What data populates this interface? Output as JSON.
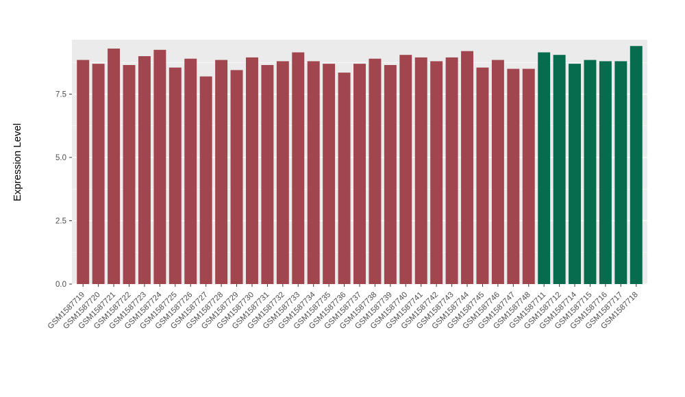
{
  "chart_data": {
    "type": "bar",
    "title": "",
    "xlabel": "",
    "ylabel": "Expression Level",
    "ylim": [
      0,
      9.65
    ],
    "yticks": [
      0,
      2.5,
      5,
      7.5
    ],
    "ytick_labels": [
      "0.0",
      "2.5",
      "5.0",
      "7.5"
    ],
    "minor_gridlines": [
      1.25,
      3.75,
      6.25,
      8.75
    ],
    "grid": true,
    "legend": "none",
    "plot_bg": "#EBEBEB",
    "grid_color": "#FFFFFF",
    "tick_color": "#333333",
    "palette": {
      "maroon": "#A1464E",
      "green": "#076C4E"
    },
    "bars": [
      {
        "label": "GSM1587719",
        "value": 8.85,
        "group": "maroon"
      },
      {
        "label": "GSM1587720",
        "value": 8.7,
        "group": "maroon"
      },
      {
        "label": "GSM1587721",
        "value": 9.3,
        "group": "maroon"
      },
      {
        "label": "GSM1587722",
        "value": 8.65,
        "group": "maroon"
      },
      {
        "label": "GSM1587723",
        "value": 9.0,
        "group": "maroon"
      },
      {
        "label": "GSM1587724",
        "value": 9.25,
        "group": "maroon"
      },
      {
        "label": "GSM1587725",
        "value": 8.55,
        "group": "maroon"
      },
      {
        "label": "GSM1587726",
        "value": 8.9,
        "group": "maroon"
      },
      {
        "label": "GSM1587727",
        "value": 8.2,
        "group": "maroon"
      },
      {
        "label": "GSM1587728",
        "value": 8.85,
        "group": "maroon"
      },
      {
        "label": "GSM1587729",
        "value": 8.45,
        "group": "maroon"
      },
      {
        "label": "GSM1587730",
        "value": 8.95,
        "group": "maroon"
      },
      {
        "label": "GSM1587731",
        "value": 8.65,
        "group": "maroon"
      },
      {
        "label": "GSM1587732",
        "value": 8.8,
        "group": "maroon"
      },
      {
        "label": "GSM1587733",
        "value": 9.15,
        "group": "maroon"
      },
      {
        "label": "GSM1587734",
        "value": 8.8,
        "group": "maroon"
      },
      {
        "label": "GSM1587735",
        "value": 8.7,
        "group": "maroon"
      },
      {
        "label": "GSM1587736",
        "value": 8.35,
        "group": "maroon"
      },
      {
        "label": "GSM1587737",
        "value": 8.7,
        "group": "maroon"
      },
      {
        "label": "GSM1587738",
        "value": 8.9,
        "group": "maroon"
      },
      {
        "label": "GSM1587739",
        "value": 8.65,
        "group": "maroon"
      },
      {
        "label": "GSM1587740",
        "value": 9.05,
        "group": "maroon"
      },
      {
        "label": "GSM1587741",
        "value": 8.95,
        "group": "maroon"
      },
      {
        "label": "GSM1587742",
        "value": 8.8,
        "group": "maroon"
      },
      {
        "label": "GSM1587743",
        "value": 8.95,
        "group": "maroon"
      },
      {
        "label": "GSM1587744",
        "value": 9.2,
        "group": "maroon"
      },
      {
        "label": "GSM1587745",
        "value": 8.55,
        "group": "maroon"
      },
      {
        "label": "GSM1587746",
        "value": 8.85,
        "group": "maroon"
      },
      {
        "label": "GSM1587747",
        "value": 8.5,
        "group": "maroon"
      },
      {
        "label": "GSM1587748",
        "value": 8.5,
        "group": "maroon"
      },
      {
        "label": "GSM1587711",
        "value": 9.15,
        "group": "green"
      },
      {
        "label": "GSM1587712",
        "value": 9.05,
        "group": "green"
      },
      {
        "label": "GSM1587714",
        "value": 8.7,
        "group": "green"
      },
      {
        "label": "GSM1587715",
        "value": 8.85,
        "group": "green"
      },
      {
        "label": "GSM1587716",
        "value": 8.8,
        "group": "green"
      },
      {
        "label": "GSM1587717",
        "value": 8.8,
        "group": "green"
      },
      {
        "label": "GSM1587718",
        "value": 9.4,
        "group": "green"
      }
    ]
  }
}
